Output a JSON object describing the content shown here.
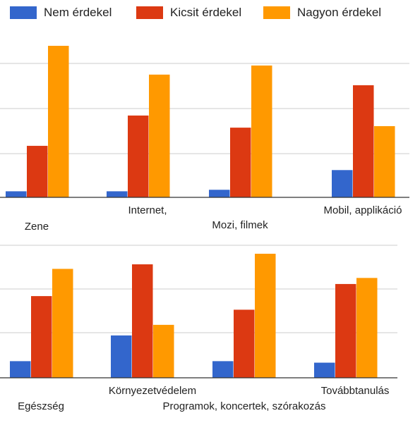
{
  "legend": [
    {
      "name": "Nem érdekel",
      "color": "#3366cc"
    },
    {
      "name": "Kicsit érdekel",
      "color": "#dc3912"
    },
    {
      "name": "Nagyon érdekel",
      "color": "#ff9900"
    }
  ],
  "chart_data": [
    {
      "type": "bar",
      "categories": [
        "Zene",
        "Internet,",
        "Mozi, filmek",
        "Mobil, applikáció"
      ],
      "series": [
        {
          "name": "Nem érdekel",
          "values": [
            2,
            2,
            2.5,
            9
          ]
        },
        {
          "name": "Kicsit érdekel",
          "values": [
            17,
            27,
            23,
            37
          ]
        },
        {
          "name": "Nagyon érdekel",
          "values": [
            50,
            40.5,
            43.5,
            23.5
          ]
        }
      ],
      "ylim": [
        0,
        50
      ],
      "grid": true,
      "legend_position": "top"
    },
    {
      "type": "bar",
      "categories": [
        "Egészség",
        "Környezetvédelem",
        "Programok, koncertek, szórakozás",
        "Továbbtanulás"
      ],
      "series": [
        {
          "name": "Nem érdekel",
          "values": [
            5.5,
            14,
            5.5,
            5
          ]
        },
        {
          "name": "Kicsit érdekel",
          "values": [
            27,
            37.5,
            22.5,
            31
          ]
        },
        {
          "name": "Nagyon érdekel",
          "values": [
            36,
            17.5,
            41,
            33
          ]
        }
      ],
      "ylim": [
        0,
        41
      ],
      "grid": true,
      "legend_position": "top"
    }
  ]
}
